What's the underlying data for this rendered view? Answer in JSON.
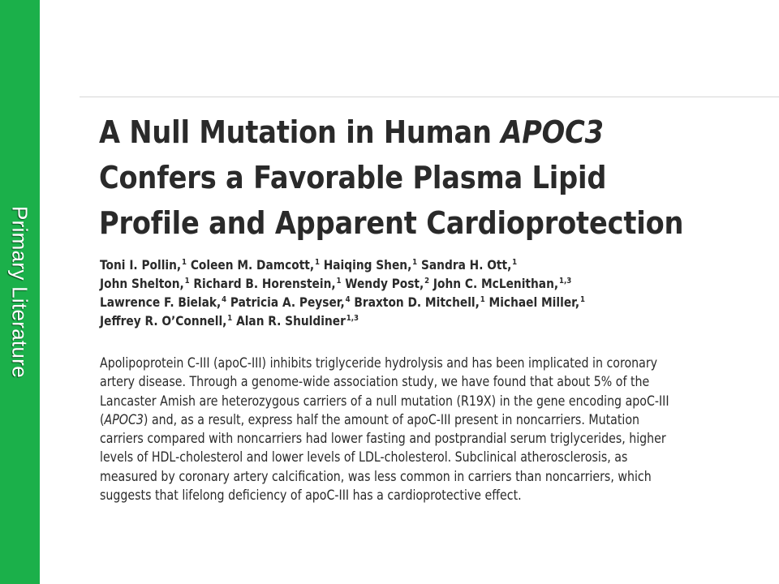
{
  "sidebar": {
    "label": "Primary Literature",
    "color": "#1bb04a"
  },
  "article": {
    "title": {
      "line1_prefix": "A Null Mutation in Human ",
      "line1_gene": "APOC3",
      "line2": "Confers a Favorable Plasma Lipid",
      "line3": "Profile and Apparent Cardioprotection"
    },
    "authors": [
      {
        "name": "Toni I. Pollin,",
        "aff": "1"
      },
      {
        "name": "Coleen M. Damcott,",
        "aff": "1"
      },
      {
        "name": "Haiqing Shen,",
        "aff": "1"
      },
      {
        "name": "Sandra H. Ott,",
        "aff": "1"
      },
      {
        "name": "John Shelton,",
        "aff": "1"
      },
      {
        "name": "Richard B. Horenstein,",
        "aff": "1"
      },
      {
        "name": "Wendy Post,",
        "aff": "2"
      },
      {
        "name": "John C. McLenithan,",
        "aff": "1,3"
      },
      {
        "name": "Lawrence F. Bielak,",
        "aff": "4"
      },
      {
        "name": "Patricia A. Peyser,",
        "aff": "4"
      },
      {
        "name": "Braxton D. Mitchell,",
        "aff": "1"
      },
      {
        "name": "Michael Miller,",
        "aff": "1"
      },
      {
        "name": "Jeffrey R. O’Connell,",
        "aff": "1"
      },
      {
        "name": "Alan R. Shuldiner",
        "aff": "1,3"
      }
    ],
    "abstract": {
      "l1": "Apolipoprotein C-III (apoC-III) inhibits triglyceride hydrolysis and has been implicated in coronary",
      "l2": "artery disease. Through a genome-wide association study, we have found that about 5% of the",
      "l3": "Lancaster Amish are heterozygous carriers of a null mutation (R19X) in the gene encoding apoC-III",
      "l4_open": "(",
      "l4_gene": "APOC3",
      "l4_rest": ") and, as a result, express half the amount of apoC-III present in noncarriers. Mutation",
      "l5": "carriers compared with noncarriers had lower fasting and postprandial serum triglycerides, higher",
      "l6": "levels of HDL-cholesterol and lower levels of LDL-cholesterol. Subclinical atherosclerosis, as",
      "l7": "measured by coronary artery calcification, was less common in carriers than noncarriers, which",
      "l8": "suggests that lifelong deficiency of apoC-III has a cardioprotective effect."
    }
  }
}
